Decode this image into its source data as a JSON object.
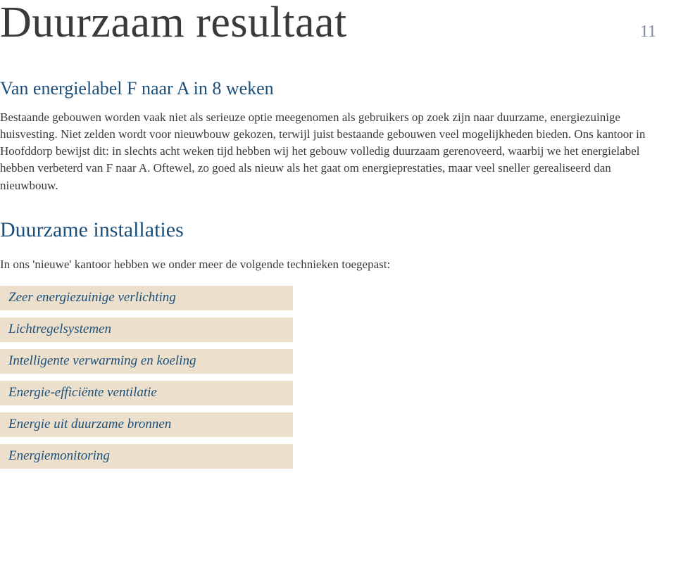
{
  "page_number": "11",
  "title": "Duurzaam resultaat",
  "colors": {
    "title_text": "#3a3a3a",
    "body_text": "#3a3a3a",
    "accent_blue": "#1b4f7a",
    "pagenum_color": "#7f8aa0",
    "pill_bg": "#ece0cd",
    "background": "#ffffff"
  },
  "subtitle": "Van energielabel F naar A in 8 weken",
  "body_text": "Bestaande gebouwen worden vaak niet als serieuze optie meegenomen als gebruikers op zoek zijn naar duurzame, energiezuinige huisvesting. Niet zelden wordt voor nieuwbouw gekozen, terwijl juist bestaande gebouwen veel mogelijkheden bieden. Ons kantoor in Hoofddorp bewijst dit: in slechts acht weken tijd hebben wij het gebouw volledig duurzaam gerenoveerd, waarbij we het energielabel hebben verbeterd van F naar A. Oftewel, zo goed als nieuw als het gaat om energieprestaties, maar veel sneller gerealiseerd dan nieuwbouw.",
  "section": {
    "heading": "Duurzame installaties",
    "intro": "In ons 'nieuwe' kantoor hebben we onder meer de volgende technieken toegepast:"
  },
  "pills": [
    "Zeer energiezuinige verlichting",
    "Lichtregelsystemen",
    "Intelligente verwarming en koeling",
    "Energie-efficiënte ventilatie",
    "Energie uit duurzame bronnen",
    "Energiemonitoring"
  ]
}
